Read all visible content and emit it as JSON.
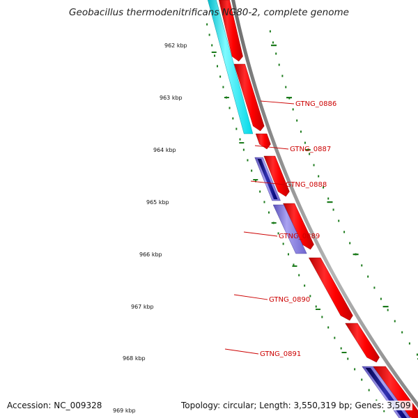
{
  "title": "Geobacillus thermodenitrificans NG80-2, complete genome",
  "footer": {
    "accession": "Accession: NC_009328",
    "topology": "Topology: circular; Length: 3,550,319 bp; Genes: 3,509"
  },
  "colors": {
    "backbone": "#8a8a8a",
    "forward_gene": "#ff0000",
    "cyan_feature": "#00e5ee",
    "blue_feature": "#7a6fd6",
    "navy_feature": "#000080",
    "tick_green": "#1a7a1a",
    "gene_label": "#cc0000"
  },
  "scale_ticks": [
    {
      "label": "962 kbp"
    },
    {
      "label": "963 kbp"
    },
    {
      "label": "964 kbp"
    },
    {
      "label": "965 kbp"
    },
    {
      "label": "966 kbp"
    },
    {
      "label": "967 kbp"
    },
    {
      "label": "968 kbp"
    },
    {
      "label": "969 kbp"
    }
  ],
  "gene_labels": [
    {
      "name": "GTNG_0886"
    },
    {
      "name": "GTNG_0887"
    },
    {
      "name": "GTNG_0888"
    },
    {
      "name": "GTNG_0889"
    },
    {
      "name": "GTNG_0890"
    },
    {
      "name": "GTNG_0891"
    }
  ]
}
